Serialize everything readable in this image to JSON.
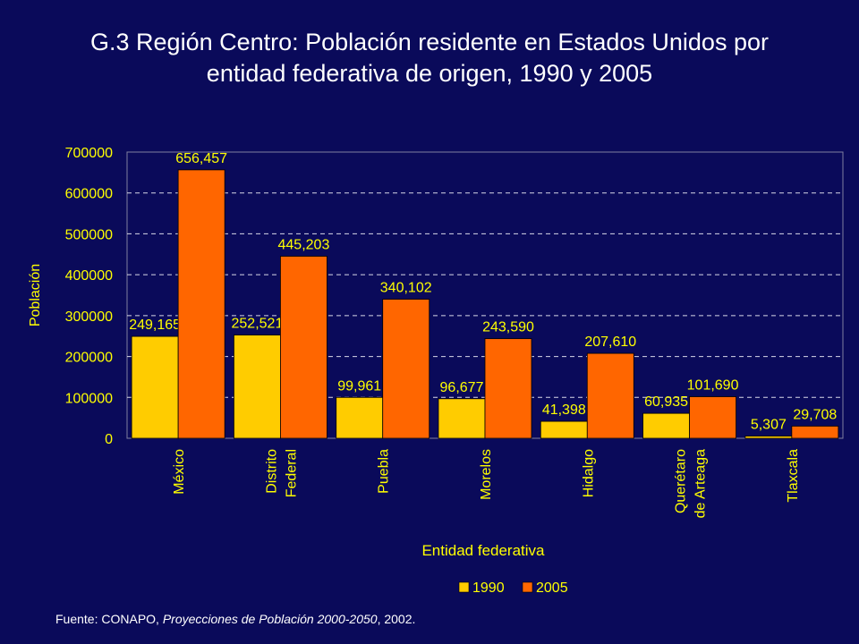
{
  "title_line1": "G.3 Región Centro: Población residente en Estados Unidos por",
  "title_line2": "entidad federativa de origen, 1990 y 2005",
  "source": {
    "prefix": "Fuente: CONAPO, ",
    "italic": "Proyecciones de Población 2000-2050",
    "suffix": ", 2002."
  },
  "colors": {
    "background": "#0a0a5a",
    "series_1990": "#ffcc00",
    "series_2005": "#ff6600",
    "text_yellow": "#ffff00"
  },
  "chart_data": {
    "type": "bar",
    "xlabel": "Entidad federativa",
    "ylabel": "Población",
    "ylim": [
      0,
      700000
    ],
    "yticks": [
      "0",
      "100000",
      "200000",
      "300000",
      "400000",
      "500000",
      "600000",
      "700000"
    ],
    "grid": "horizontal dashed",
    "legend_position": "bottom-right",
    "categories": [
      [
        "México"
      ],
      [
        "Distrito",
        "Federal"
      ],
      [
        "Puebla"
      ],
      [
        "Morelos"
      ],
      [
        "Hidalgo"
      ],
      [
        "Querétaro",
        "de Arteaga"
      ],
      [
        "Tlaxcala"
      ]
    ],
    "series": [
      {
        "name": "1990",
        "values": [
          249165,
          252521,
          99961,
          96677,
          41398,
          60935,
          5307
        ],
        "labels": [
          "249,165",
          "252,521",
          "99,961",
          "96,677",
          "41,398",
          "60,935",
          "5,307"
        ]
      },
      {
        "name": "2005",
        "values": [
          656457,
          445203,
          340102,
          243590,
          207610,
          101690,
          29708
        ],
        "labels": [
          "656,457",
          "445,203",
          "340,102",
          "243,590",
          "207,610",
          "101,690",
          "29,708"
        ]
      }
    ]
  }
}
